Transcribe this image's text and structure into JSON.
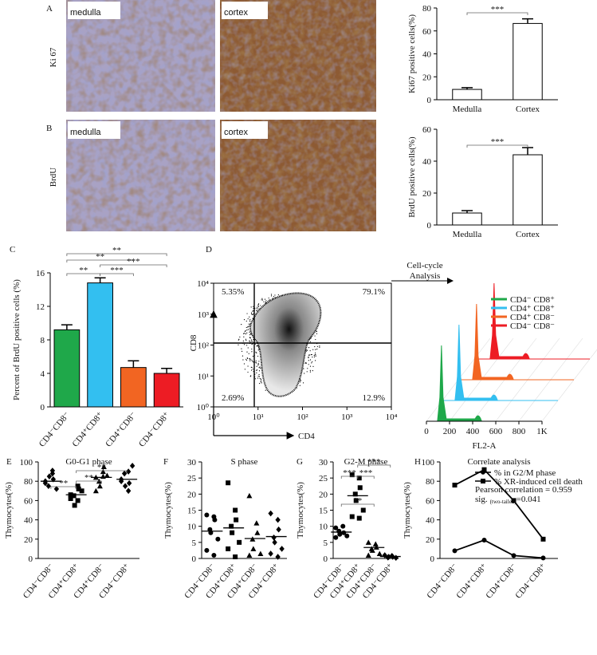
{
  "micrographs": [
    {
      "panel": "A",
      "label": "Ki 67",
      "left": "medulla",
      "right": "cortex"
    },
    {
      "panel": "B",
      "label": "BrdU",
      "left": "medulla",
      "right": "cortex"
    }
  ],
  "chart_data": [
    {
      "type": "bar",
      "ylabel": "Ki67 positive cells(%)",
      "categories": [
        "Medulla",
        "Cortex"
      ],
      "values": [
        9,
        66.5
      ],
      "errors": [
        1.5,
        4
      ],
      "color": "#ffffff",
      "ylim": [
        0,
        80
      ],
      "yticks": [
        0,
        20,
        40,
        60,
        80
      ],
      "significance": [
        "***"
      ]
    },
    {
      "type": "bar",
      "ylabel": "BrdU positive cells(%)",
      "categories": [
        "Medulla",
        "Cortex"
      ],
      "values": [
        7.5,
        44
      ],
      "errors": [
        1.5,
        4.5
      ],
      "color": "#ffffff",
      "ylim": [
        0,
        60
      ],
      "yticks": [
        0,
        20,
        40,
        60
      ],
      "significance": [
        "***"
      ]
    },
    {
      "type": "bar",
      "panel": "C",
      "ylabel": "Percent of BrdU positive cells (%)",
      "categories": [
        "CD4⁻CD8⁻",
        "CD4⁺CD8⁺",
        "CD4⁺CD8⁻",
        "CD4⁻CD8⁺"
      ],
      "values": [
        9.2,
        14.8,
        4.7,
        4.0
      ],
      "errors": [
        0.6,
        0.6,
        0.8,
        0.6
      ],
      "colors": [
        "#1fa84a",
        "#33bff0",
        "#f26522",
        "#ed1c24"
      ],
      "ylim": [
        0,
        16
      ],
      "yticks": [
        0,
        4,
        8,
        12,
        16
      ],
      "significance": [
        "**",
        "**",
        "***",
        "**",
        "***"
      ]
    },
    {
      "type": "density",
      "panel": "D",
      "xlabel": "CD4",
      "ylabel": "CD8",
      "log_scale": true,
      "xlim": [
        1,
        10000
      ],
      "ylim": [
        1,
        10000
      ],
      "xticks": [
        {
          "value": 1,
          "label": "10⁰"
        },
        {
          "value": 10,
          "label": "10¹"
        },
        {
          "value": 100,
          "label": "10²"
        },
        {
          "value": 1000,
          "label": "10³"
        },
        {
          "value": 10000,
          "label": "10⁴"
        }
      ],
      "yticks": [
        {
          "value": 1,
          "label": "10⁰"
        },
        {
          "value": 10,
          "label": "10¹"
        },
        {
          "value": 100,
          "label": "10²"
        },
        {
          "value": 1000,
          "label": "10³"
        },
        {
          "value": 10000,
          "label": "10⁴"
        }
      ],
      "values": [
        5.35,
        79.1,
        2.69,
        12.9
      ],
      "value_labels": [
        "5.35%",
        "79.1%",
        "2.69%",
        "12.9%"
      ]
    },
    {
      "type": "ridgeline",
      "annotation": [
        "Cell-cycle",
        "Analysis"
      ],
      "xlabel": "FL2-A",
      "xlim": [
        0,
        1000
      ],
      "xticks": [
        0,
        200,
        400,
        600,
        800,
        {
          "value": 1000,
          "label": "1K"
        }
      ],
      "series": [
        {
          "name": "CD4⁻ CD8⁺",
          "color": "#1fa84a"
        },
        {
          "name": "CD4⁺ CD8⁺",
          "color": "#33bff0"
        },
        {
          "name": "CD4⁺ CD8⁻",
          "color": "#f26522"
        },
        {
          "name": "CD4⁻ CD8⁻",
          "color": "#ed1c24"
        }
      ]
    },
    {
      "type": "dot",
      "panel": "E",
      "title": "G0-G1 phase",
      "ylabel": "Thymocytes(%)",
      "categories": [
        "CD4⁻CD8⁻",
        "CD4⁺CD8⁺",
        "CD4⁺CD8⁻",
        "CD4⁻CD8⁺"
      ],
      "values": [
        [
          80,
          88,
          82,
          75,
          85,
          72,
          78,
          91
        ],
        [
          66,
          60,
          72,
          65,
          55,
          70,
          62,
          75
        ],
        [
          84,
          90,
          95,
          80,
          75,
          86,
          70,
          85
        ],
        [
          82,
          90,
          78,
          88,
          75,
          96,
          80,
          70
        ]
      ],
      "means": [
        80,
        66,
        84,
        82
      ],
      "markers": [
        "diamond",
        "square",
        "triangle",
        "diamond"
      ],
      "ylim": [
        0,
        100
      ],
      "yticks": [
        0,
        20,
        40,
        60,
        80,
        100
      ],
      "significance": [
        "**",
        "**",
        "**"
      ]
    },
    {
      "type": "dot",
      "panel": "F",
      "title": "S phase",
      "ylabel": "Thymocytes(%)",
      "categories": [
        "CD4⁻CD8⁻",
        "CD4⁺CD8⁺",
        "CD4⁺CD8⁻",
        "CD4⁻CD8⁺"
      ],
      "values": [
        [
          13.5,
          13,
          12,
          9,
          8,
          6,
          2.5,
          1
        ],
        [
          23.5,
          15,
          12,
          10,
          8,
          5,
          3,
          0.5
        ],
        [
          19.5,
          11,
          8,
          6,
          3,
          1.5,
          1
        ],
        [
          14,
          12,
          9,
          6.5,
          5,
          3,
          1.5,
          0.5
        ]
      ],
      "means": [
        8.5,
        9.5,
        6.2,
        6.8
      ],
      "markers": [
        "circle",
        "square",
        "triangle",
        "diamond"
      ],
      "ylim": [
        0,
        30
      ],
      "yticks": [
        0,
        5,
        10,
        15,
        20,
        25,
        30
      ],
      "significance": []
    },
    {
      "type": "dot",
      "panel": "G",
      "title": "G2-M  phase",
      "ylabel": "Thymocytes(%)",
      "categories": [
        "CD4⁻CD8⁻",
        "CD4⁺CD8⁺",
        "CD4⁺CD8⁻",
        "CD4⁻CD8⁺"
      ],
      "values": [
        [
          9.5,
          10,
          8,
          8.5,
          7.5,
          7,
          6.5
        ],
        [
          26,
          25,
          22,
          20,
          18,
          15,
          13,
          12.5
        ],
        [
          5,
          4.5,
          3.5,
          3,
          2.5,
          1.5,
          1
        ],
        [
          1,
          0.8,
          0.5,
          0.3,
          0.5,
          0.2
        ]
      ],
      "means": [
        8.2,
        19.5,
        3.4,
        0.6
      ],
      "markers": [
        "circle",
        "square",
        "triangle",
        "diamond"
      ],
      "ylim": [
        0,
        30
      ],
      "yticks": [
        0,
        5,
        10,
        15,
        20,
        25,
        30
      ],
      "significance": [
        "***",
        "***",
        "***",
        "**"
      ]
    },
    {
      "type": "line",
      "panel": "H",
      "title": "Correlate analysis",
      "ylabel": "Thymocytes(%)",
      "categories": [
        "CD4⁻CD8⁻",
        "CD4⁺CD8⁺",
        "CD4⁺CD8⁻",
        "CD4⁻CD8⁺"
      ],
      "series": [
        {
          "name": "% in G2/M phase",
          "marker": "circle",
          "color": "#000000",
          "values": [
            8,
            19,
            3,
            0.5
          ]
        },
        {
          "name": "% XR-induced cell death",
          "marker": "square",
          "color": "#000000",
          "values": [
            76,
            92,
            60,
            20
          ]
        }
      ],
      "ylim": [
        0,
        100
      ],
      "yticks": [
        0,
        20,
        40,
        60,
        80,
        100
      ],
      "annotation": "Pearson correlation = 0.959",
      "sig": [
        "sig.",
        "(two-tailed)",
        "=0.041"
      ]
    }
  ]
}
